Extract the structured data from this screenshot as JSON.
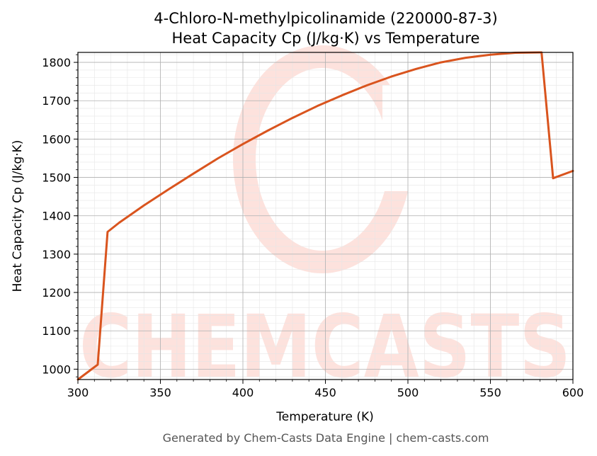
{
  "colors": {
    "line": "#d9541e",
    "watermark": "#fde2dd",
    "grid_major": "#b0b0b0",
    "grid_minor": "#e6e6e6",
    "footer": "#555555"
  },
  "watermark": {
    "text": "CHEMCASTS"
  },
  "footer": "Generated by Chem-Casts Data Engine | chem-casts.com",
  "chart_data": {
    "type": "line",
    "title_line1": "4-Chloro-N-methylpicolinamide (220000-87-3)",
    "title_line2": "Heat Capacity Cp (J/kg·K) vs Temperature",
    "xlabel": "Temperature (K)",
    "ylabel": "Heat Capacity Cp (J/kg·K)",
    "xlim": [
      300,
      600
    ],
    "ylim": [
      973,
      1826
    ],
    "xticks": [
      300,
      350,
      400,
      450,
      500,
      550,
      600
    ],
    "yticks": [
      1000,
      1100,
      1200,
      1300,
      1400,
      1500,
      1600,
      1700,
      1800
    ],
    "grid": true,
    "series": [
      {
        "x": [
          300,
          312,
          318,
          325,
          340,
          355,
          370,
          385,
          400,
          415,
          430,
          445,
          460,
          475,
          490,
          505,
          520,
          535,
          550,
          565,
          581,
          588,
          600
        ],
        "y": [
          973,
          1012,
          1358,
          1382,
          1427,
          1469,
          1510,
          1550,
          1587,
          1622,
          1655,
          1686,
          1714,
          1740,
          1763,
          1783,
          1800,
          1812,
          1820,
          1825,
          1826,
          1498,
          1517
        ]
      }
    ]
  }
}
